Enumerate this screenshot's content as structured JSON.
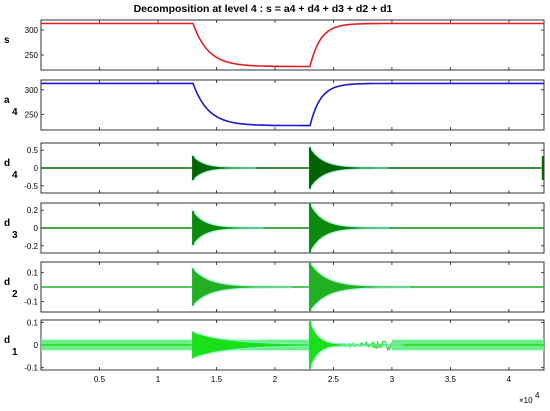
{
  "chart_data": {
    "type": "line",
    "title": "Decomposition at level 4 : s = a4 + d4 + d3 + d2 + d1",
    "x_range": [
      0,
      43000
    ],
    "x_ticks": [
      5000,
      10000,
      15000,
      20000,
      25000,
      30000,
      35000,
      40000
    ],
    "x_tick_labels": [
      "0.5",
      "1",
      "1.5",
      "2",
      "2.5",
      "3",
      "3.5",
      "4"
    ],
    "x_multiplier_label": {
      "base": "×10",
      "exp": "4"
    },
    "events": {
      "drop_start": 13000,
      "rise_start": 23000
    },
    "panels": [
      {
        "label": "s",
        "sub": "",
        "kind": "signal",
        "color": "#e02020",
        "ylim": [
          220,
          320
        ],
        "yticks": [
          250,
          300
        ],
        "ytick_labels": [
          "250",
          "300"
        ],
        "high": 313,
        "low": 227,
        "decay_tau": 1300,
        "rise_tau": 900
      },
      {
        "label": "a",
        "sub": "4",
        "kind": "signal",
        "color": "#1818d0",
        "ylim": [
          218,
          320
        ],
        "yticks": [
          250,
          300
        ],
        "ytick_labels": [
          "250",
          "300"
        ],
        "high": 313,
        "low": 227,
        "decay_tau": 1300,
        "rise_tau": 900
      },
      {
        "label": "d",
        "sub": "4",
        "kind": "detail",
        "color": "#006400",
        "ylim": [
          -0.7,
          0.7
        ],
        "yticks": [
          0.5,
          0,
          -0.5
        ],
        "ytick_labels": [
          "0.5",
          "0",
          "-0.5"
        ],
        "bursts": [
          {
            "x": 13000,
            "amp": 0.32,
            "tau": 900
          },
          {
            "x": 23000,
            "amp": 0.55,
            "tau": 1100
          },
          {
            "x": 42900,
            "amp": 0.32,
            "tau": 200
          }
        ],
        "noise": 0.0
      },
      {
        "label": "d",
        "sub": "3",
        "kind": "detail",
        "color": "#0b8a0b",
        "ylim": [
          -0.28,
          0.28
        ],
        "yticks": [
          0.2,
          0,
          -0.2
        ],
        "ytick_labels": [
          "0.2",
          "0",
          "-0.2"
        ],
        "bursts": [
          {
            "x": 13000,
            "amp": 0.18,
            "tau": 1000
          },
          {
            "x": 23000,
            "amp": 0.26,
            "tau": 1100
          }
        ],
        "noise": 0.0
      },
      {
        "label": "d",
        "sub": "2",
        "kind": "detail",
        "color": "#22b022",
        "ylim": [
          -0.17,
          0.17
        ],
        "yticks": [
          0.1,
          0,
          -0.1
        ],
        "ytick_labels": [
          "0.1",
          "0",
          "-0.1"
        ],
        "bursts": [
          {
            "x": 13000,
            "amp": 0.12,
            "tau": 1400
          },
          {
            "x": 23000,
            "amp": 0.16,
            "tau": 1400
          }
        ],
        "noise": 0.0
      },
      {
        "label": "d",
        "sub": "1",
        "kind": "detail",
        "color": "#19e019",
        "ylim": [
          -0.11,
          0.11
        ],
        "yticks": [
          0.1,
          0,
          -0.1
        ],
        "ytick_labels": [
          "0.1",
          "0",
          "-0.1"
        ],
        "bursts": [
          {
            "x": 13000,
            "amp": 0.055,
            "tau": 3000
          },
          {
            "x": 23000,
            "amp": 0.1,
            "tau": 700
          }
        ],
        "noise": 0.022,
        "quiet_after": 23500,
        "quiet_until": 30000
      }
    ]
  }
}
